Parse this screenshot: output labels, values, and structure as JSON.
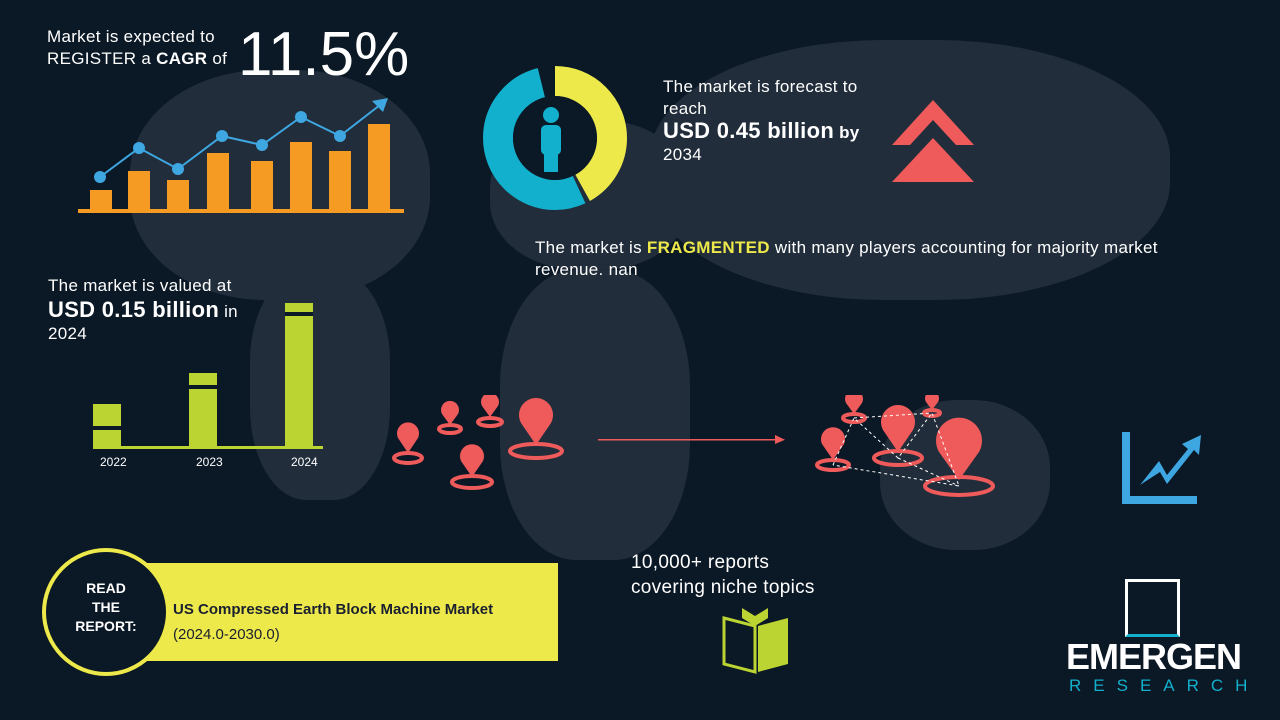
{
  "cagr": {
    "line1": "Market is expected to",
    "line2_prefix": "REGISTER a",
    "line2_bold": "CAGR",
    "line2_suffix": "of",
    "value": "11.5%"
  },
  "forecast": {
    "line1": "The market is forecast to",
    "line2": "reach",
    "value": "USD 0.45 billion",
    "by": "by",
    "year": "2034"
  },
  "fragmented": {
    "prefix": "The market is",
    "highlight": "FRAGMENTED",
    "suffix": "with many players accounting for majority market",
    "line2": "revenue. nan"
  },
  "valued": {
    "line1": "The market is valued at",
    "value": "USD 0.15 billion",
    "in": "in",
    "year": "2024"
  },
  "bar_years": [
    "2022",
    "2023",
    "2024"
  ],
  "reports": {
    "line1": "10,000+ reports",
    "line2": "covering niche topics"
  },
  "read_report": {
    "circle_lines": [
      "READ",
      "THE",
      "REPORT:"
    ],
    "title": "US Compressed Earth Block Machine Market",
    "period": "(2024.0-2030.0)"
  },
  "logo": {
    "name": "EMERGEN",
    "sub": "RESEARCH"
  },
  "colors": {
    "background": "#0b1825",
    "orange": "#f59a23",
    "blue": "#3ea6e0",
    "yellow": "#ede94a",
    "lime": "#bcd432",
    "coral": "#ef5a5a",
    "teal": "#12b0cc"
  }
}
